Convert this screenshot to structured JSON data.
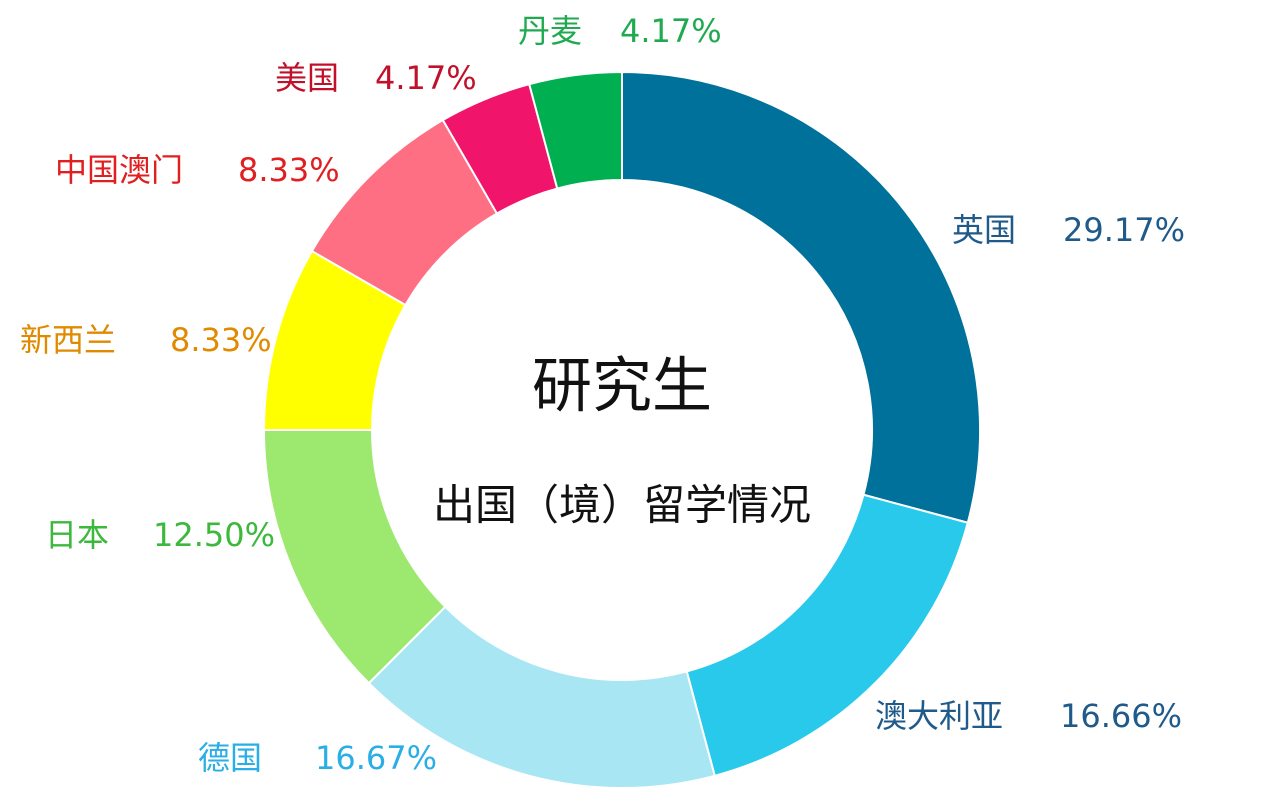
{
  "chart_data": {
    "type": "donut",
    "title": "研究生",
    "subtitle": "出国（境）留学情况",
    "categories": [
      "英国",
      "澳大利亚",
      "德国",
      "日本",
      "新西兰",
      "中国澳门",
      "美国",
      "丹麦"
    ],
    "values": [
      29.17,
      16.66,
      16.67,
      12.5,
      8.33,
      8.33,
      4.17,
      4.17
    ],
    "value_labels": [
      "29.17%",
      "16.66%",
      "16.67%",
      "12.50%",
      "8.33%",
      "8.33%",
      "4.17%",
      "4.17%"
    ],
    "colors": [
      "#00719a",
      "#29c9ec",
      "#a8e6f4",
      "#9de86e",
      "#ffff00",
      "#ff6f84",
      "#f0146b",
      "#00b050"
    ],
    "label_colors": [
      "#1f5a8a",
      "#1f5a8a",
      "#2aaee6",
      "#3cb83c",
      "#e08a00",
      "#e02020",
      "#c0102a",
      "#1faa50"
    ]
  }
}
